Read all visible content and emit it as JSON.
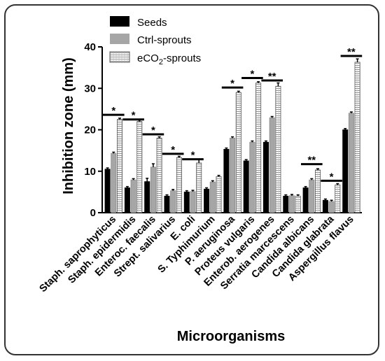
{
  "chart_data": {
    "type": "bar",
    "ylabel": "Inhibition zone (mm)",
    "xlabel": "Microorganisms",
    "ylim": [
      0,
      40
    ],
    "yticks": [
      0,
      10,
      20,
      30,
      40
    ],
    "categories": [
      "Staph. saprophyticus",
      "Staph. epidermidis",
      "Enteroc. faecalis",
      "Strept. salivarius",
      "E. coli",
      "S. Typhimurium",
      "P. aeruginosa",
      "Proteus vulgaris",
      "Enterob. aerogenes",
      "Serratia marcescens",
      "Candida albicans",
      "Candida glabrata",
      "Aspergillus flavus"
    ],
    "series": [
      {
        "name": "Seeds",
        "color": "#000000",
        "values": [
          10.5,
          6.0,
          7.5,
          4.0,
          5.0,
          5.7,
          15.3,
          12.5,
          17.0,
          4.0,
          6.0,
          3.0,
          20.0
        ],
        "errors": [
          0.3,
          0.3,
          0.8,
          0.3,
          0.3,
          0.3,
          0.3,
          0.3,
          0.3,
          0.3,
          0.3,
          0.3,
          0.3
        ]
      },
      {
        "name": "Ctrl-sprouts",
        "color": "#a6a6a6",
        "values": [
          14.3,
          7.9,
          11.0,
          5.3,
          5.1,
          7.4,
          18.0,
          17.0,
          22.9,
          4.1,
          7.9,
          2.7,
          24.0
        ],
        "errors": [
          0.3,
          0.3,
          0.8,
          0.3,
          0.3,
          0.3,
          0.3,
          0.3,
          0.3,
          0.3,
          0.3,
          0.3,
          0.3
        ]
      },
      {
        "name": "eCO2-sprouts",
        "legend_main": "eCO",
        "legend_sub": "2",
        "legend_suffix": "-sprouts",
        "color": "#ffffff",
        "values": [
          22.5,
          22.0,
          18.0,
          13.3,
          12.0,
          8.7,
          29.0,
          31.3,
          30.5,
          4.0,
          10.3,
          6.7,
          36.3
        ],
        "errors": [
          0.3,
          0.3,
          0.3,
          0.3,
          0.8,
          0.3,
          0.3,
          0.3,
          0.8,
          0.3,
          0.3,
          0.3,
          0.8
        ]
      }
    ],
    "significance": [
      {
        "from": 0,
        "to": 0,
        "y": 23.6,
        "label": "*"
      },
      {
        "from": 1,
        "to": 1,
        "y": 22.5,
        "label": "*"
      },
      {
        "from": 2,
        "to": 2,
        "y": 18.9,
        "label": "*"
      },
      {
        "from": 3,
        "to": 3,
        "y": 14.2,
        "label": "*"
      },
      {
        "from": 4,
        "to": 4,
        "y": 12.9,
        "label": "*"
      },
      {
        "from": 6,
        "to": 6,
        "y": 30.2,
        "label": "*"
      },
      {
        "from": 7,
        "to": 7,
        "y": 32.5,
        "label": "*"
      },
      {
        "from": 8,
        "to": 8,
        "y": 31.9,
        "label": "**"
      },
      {
        "from": 10,
        "to": 10,
        "y": 11.7,
        "label": "**"
      },
      {
        "from": 11,
        "to": 11,
        "y": 7.7,
        "label": "*"
      },
      {
        "from": 12,
        "to": 12,
        "y": 37.8,
        "label": "**"
      }
    ],
    "legend_position": "top-left",
    "grid": false
  }
}
